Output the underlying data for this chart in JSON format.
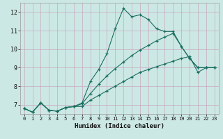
{
  "xlabel": "Humidex (Indice chaleur)",
  "background_color": "#cce8e4",
  "grid_color": "#c8a8c0",
  "line_color": "#1a6e60",
  "xlim": [
    -0.5,
    23.5
  ],
  "ylim": [
    6.5,
    12.5
  ],
  "xticks": [
    0,
    1,
    2,
    3,
    4,
    5,
    6,
    7,
    8,
    9,
    10,
    11,
    12,
    13,
    14,
    15,
    16,
    17,
    18,
    19,
    20,
    21,
    22,
    23
  ],
  "yticks": [
    7,
    8,
    9,
    10,
    11,
    12
  ],
  "series": [
    {
      "x": [
        0,
        1,
        2,
        3,
        4,
        5,
        6,
        7,
        8,
        9,
        10,
        11,
        12,
        13,
        14,
        15,
        16,
        17,
        18,
        19,
        20,
        21,
        22,
        23
      ],
      "y": [
        6.8,
        6.6,
        7.1,
        6.7,
        6.65,
        6.85,
        6.9,
        7.1,
        8.25,
        8.9,
        9.75,
        11.1,
        12.2,
        11.75,
        11.85,
        11.6,
        11.1,
        10.95,
        10.95,
        10.15,
        9.5,
        9.0,
        9.0,
        9.0
      ]
    },
    {
      "x": [
        0,
        1,
        2,
        3,
        4,
        5,
        6,
        7,
        8,
        9,
        10,
        11,
        12,
        13,
        14,
        15,
        16,
        17,
        18,
        19,
        20,
        21,
        22,
        23
      ],
      "y": [
        6.8,
        6.6,
        7.1,
        6.7,
        6.65,
        6.85,
        6.9,
        7.05,
        7.6,
        8.1,
        8.55,
        8.95,
        9.3,
        9.65,
        9.95,
        10.2,
        10.45,
        10.65,
        10.85,
        10.15,
        9.5,
        9.0,
        9.0,
        9.0
      ]
    },
    {
      "x": [
        0,
        1,
        2,
        3,
        4,
        5,
        6,
        7,
        8,
        9,
        10,
        11,
        12,
        13,
        14,
        15,
        16,
        17,
        18,
        19,
        20,
        21,
        22,
        23
      ],
      "y": [
        6.8,
        6.6,
        7.1,
        6.7,
        6.65,
        6.85,
        6.9,
        6.9,
        7.25,
        7.5,
        7.75,
        8.0,
        8.25,
        8.5,
        8.75,
        8.9,
        9.05,
        9.2,
        9.35,
        9.5,
        9.6,
        8.75,
        9.0,
        9.0
      ]
    }
  ]
}
